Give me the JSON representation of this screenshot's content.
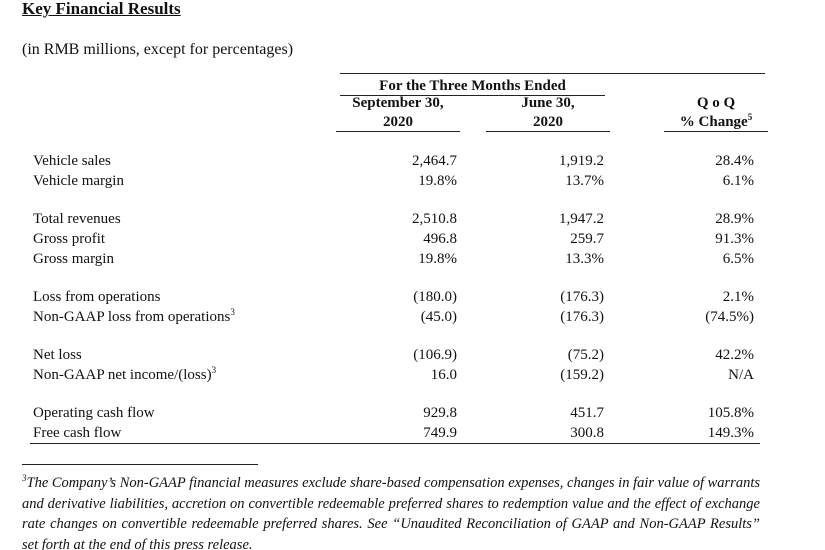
{
  "header": {
    "title": "Key Financial Results",
    "subtitle": "(in RMB millions, except for percentages)"
  },
  "table": {
    "group_header": "For the Three Months Ended",
    "columns": [
      {
        "lines": [
          "September 30,",
          "2020"
        ]
      },
      {
        "lines": [
          "June 30,",
          "2020"
        ]
      },
      {
        "lines": [
          "Q o Q",
          "% Change"
        ],
        "note": "5"
      }
    ],
    "sections": [
      [
        {
          "label": "Vehicle sales",
          "values": [
            "2,464.7",
            "1,919.2",
            "28.4%"
          ]
        },
        {
          "label": "Vehicle margin",
          "values": [
            "19.8%",
            "13.7%",
            "6.1%"
          ]
        }
      ],
      [
        {
          "label": "Total revenues",
          "values": [
            "2,510.8",
            "1,947.2",
            "28.9%"
          ]
        },
        {
          "label": "Gross profit",
          "values": [
            "496.8",
            "259.7",
            "91.3%"
          ]
        },
        {
          "label": "Gross margin",
          "values": [
            "19.8%",
            "13.3%",
            "6.5%"
          ]
        }
      ],
      [
        {
          "label": "Loss from operations",
          "values": [
            "(180.0)",
            "(176.3)",
            "2.1%"
          ]
        },
        {
          "label": "Non-GAAP loss from operations",
          "note": "3",
          "values": [
            "(45.0)",
            "(176.3)",
            "(74.5%)"
          ]
        }
      ],
      [
        {
          "label": "Net loss",
          "values": [
            "(106.9)",
            "(75.2)",
            "42.2%"
          ]
        },
        {
          "label": "Non-GAAP net income/(loss)",
          "note": "3",
          "values": [
            "16.0",
            "(159.2)",
            "N/A"
          ]
        }
      ],
      [
        {
          "label": "Operating cash flow",
          "values": [
            "929.8",
            "451.7",
            "105.8%"
          ]
        },
        {
          "label": "Free cash flow",
          "values": [
            "749.9",
            "300.8",
            "149.3%"
          ]
        }
      ]
    ]
  },
  "footnote": {
    "marker": "3",
    "text": "The Company’s Non-GAAP financial measures exclude share-based compensation expenses, changes in fair value of warrants and derivative liabilities, accretion on convertible redeemable preferred shares to redemption value and the effect of exchange rate changes on convertible redeemable preferred shares. See “Unaudited Reconciliation of GAAP and Non-GAAP Results” set forth at the end of this press release."
  }
}
